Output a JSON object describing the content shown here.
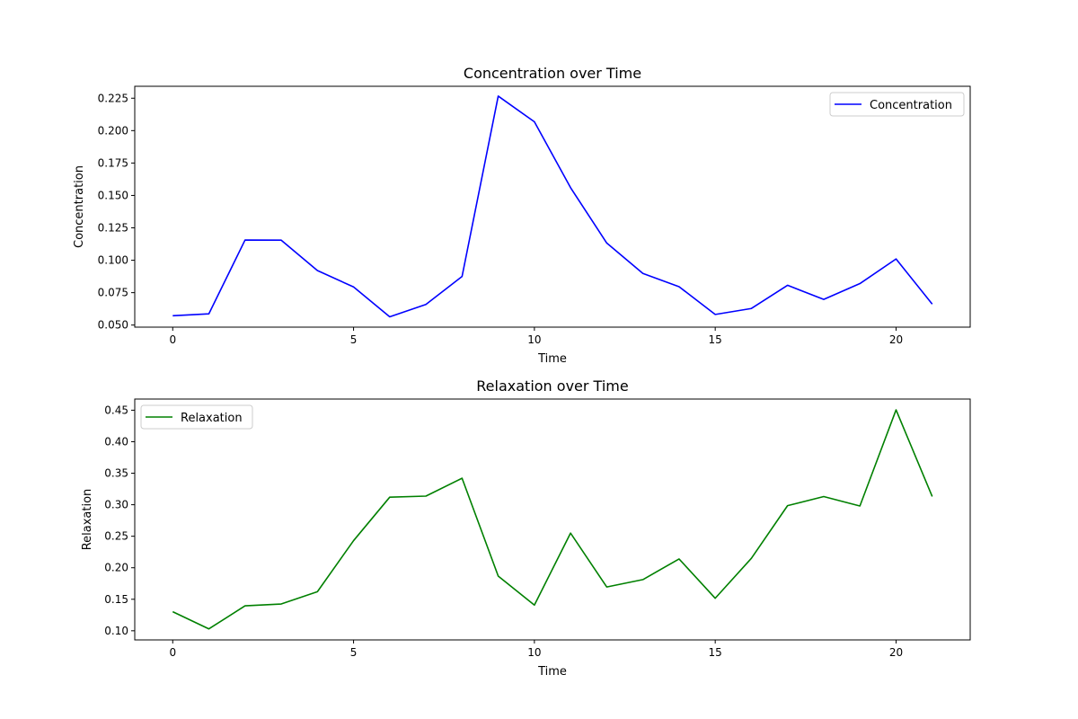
{
  "chart_data": [
    {
      "type": "line",
      "title": "Concentration over Time",
      "xlabel": "Time",
      "ylabel": "Concentration",
      "x": [
        0,
        1,
        2,
        3,
        4,
        5,
        6,
        7,
        8,
        9,
        10,
        11,
        12,
        13,
        14,
        15,
        16,
        17,
        18,
        19,
        20,
        21
      ],
      "xlim": [
        -1.05,
        22.05
      ],
      "ylim": [
        0.0484,
        0.2342
      ],
      "xticks": [
        0,
        5,
        10,
        15,
        20
      ],
      "xtick_labels": [
        "0",
        "5",
        "10",
        "15",
        "20"
      ],
      "yticks": [
        0.05,
        0.075,
        0.1,
        0.125,
        0.15,
        0.175,
        0.2,
        0.225
      ],
      "ytick_labels": [
        "0.050",
        "0.075",
        "0.100",
        "0.125",
        "0.150",
        "0.175",
        "0.200",
        "0.225"
      ],
      "grid": false,
      "legend_position": "top-right",
      "series": [
        {
          "name": "Concentration",
          "color": "#0000ff",
          "values": [
            0.0572,
            0.0587,
            0.1156,
            0.1155,
            0.0921,
            0.0794,
            0.0564,
            0.0659,
            0.0875,
            0.2266,
            0.2068,
            0.156,
            0.1133,
            0.0898,
            0.0796,
            0.0582,
            0.0628,
            0.0807,
            0.0698,
            0.082,
            0.101,
            0.0662
          ]
        }
      ]
    },
    {
      "type": "line",
      "title": "Relaxation over Time",
      "xlabel": "Time",
      "ylabel": "Relaxation",
      "x": [
        0,
        1,
        2,
        3,
        4,
        5,
        6,
        7,
        8,
        9,
        10,
        11,
        12,
        13,
        14,
        15,
        16,
        17,
        18,
        19,
        20,
        21
      ],
      "xlim": [
        -1.05,
        22.05
      ],
      "ylim": [
        0.0855,
        0.4677
      ],
      "xticks": [
        0,
        5,
        10,
        15,
        20
      ],
      "xtick_labels": [
        "0",
        "5",
        "10",
        "15",
        "20"
      ],
      "yticks": [
        0.1,
        0.15,
        0.2,
        0.25,
        0.3,
        0.35,
        0.4,
        0.45
      ],
      "ytick_labels": [
        "0.10",
        "0.15",
        "0.20",
        "0.25",
        "0.30",
        "0.35",
        "0.40",
        "0.45"
      ],
      "grid": false,
      "legend_position": "top-left",
      "series": [
        {
          "name": "Relaxation",
          "color": "#008000",
          "values": [
            0.1302,
            0.103,
            0.1396,
            0.1425,
            0.162,
            0.243,
            0.312,
            0.3137,
            0.342,
            0.1868,
            0.1408,
            0.255,
            0.1695,
            0.1812,
            0.214,
            0.1516,
            0.215,
            0.2985,
            0.313,
            0.298,
            0.4505,
            0.313
          ]
        }
      ]
    }
  ]
}
